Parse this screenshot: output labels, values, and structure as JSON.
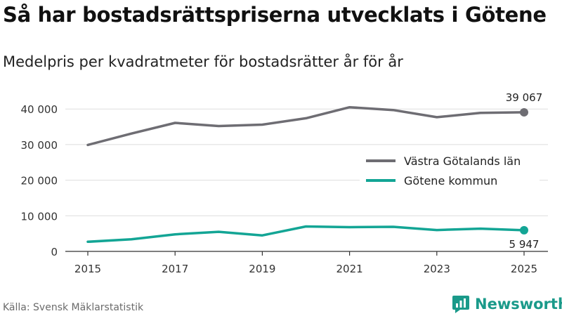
{
  "title": "Så har bostadsrättspriserna utvecklats i Götene",
  "subtitle": "Medelpris per kvadratmeter för bostadsrätter år för år",
  "source": "Källa: Svensk Mäklarstatistik",
  "brand": "Newsworthy",
  "colors": {
    "series_region": "#6e6d73",
    "series_kommun": "#13a595",
    "grid": "#dddddd",
    "axis": "#333333",
    "brand": "#1a9a8a"
  },
  "chart_data": {
    "type": "line",
    "x": [
      2015,
      2016,
      2017,
      2018,
      2019,
      2020,
      2021,
      2022,
      2023,
      2024,
      2025
    ],
    "series": [
      {
        "name": "Västra Götalands län",
        "color": "#6e6d73",
        "values": [
          29900,
          33100,
          36100,
          35200,
          35600,
          37400,
          40500,
          39700,
          37700,
          38900,
          39067
        ],
        "end_label": "39 067"
      },
      {
        "name": "Götene kommun",
        "color": "#13a595",
        "values": [
          2700,
          3400,
          4800,
          5500,
          4500,
          7000,
          6800,
          6900,
          6000,
          6400,
          5947
        ],
        "end_label": "5 947"
      }
    ],
    "xticks": [
      2015,
      2017,
      2019,
      2021,
      2023,
      2025
    ],
    "xtick_labels": [
      "2015",
      "2017",
      "2019",
      "2021",
      "2023",
      "2025"
    ],
    "yticks": [
      0,
      10000,
      20000,
      30000,
      40000
    ],
    "ytick_labels": [
      "0",
      "10 000",
      "20 000",
      "30 000",
      "40 000"
    ],
    "ylim": [
      0,
      43000
    ],
    "xlim": [
      2014.7,
      2025.3
    ],
    "grid": true,
    "legend_position": "right"
  }
}
